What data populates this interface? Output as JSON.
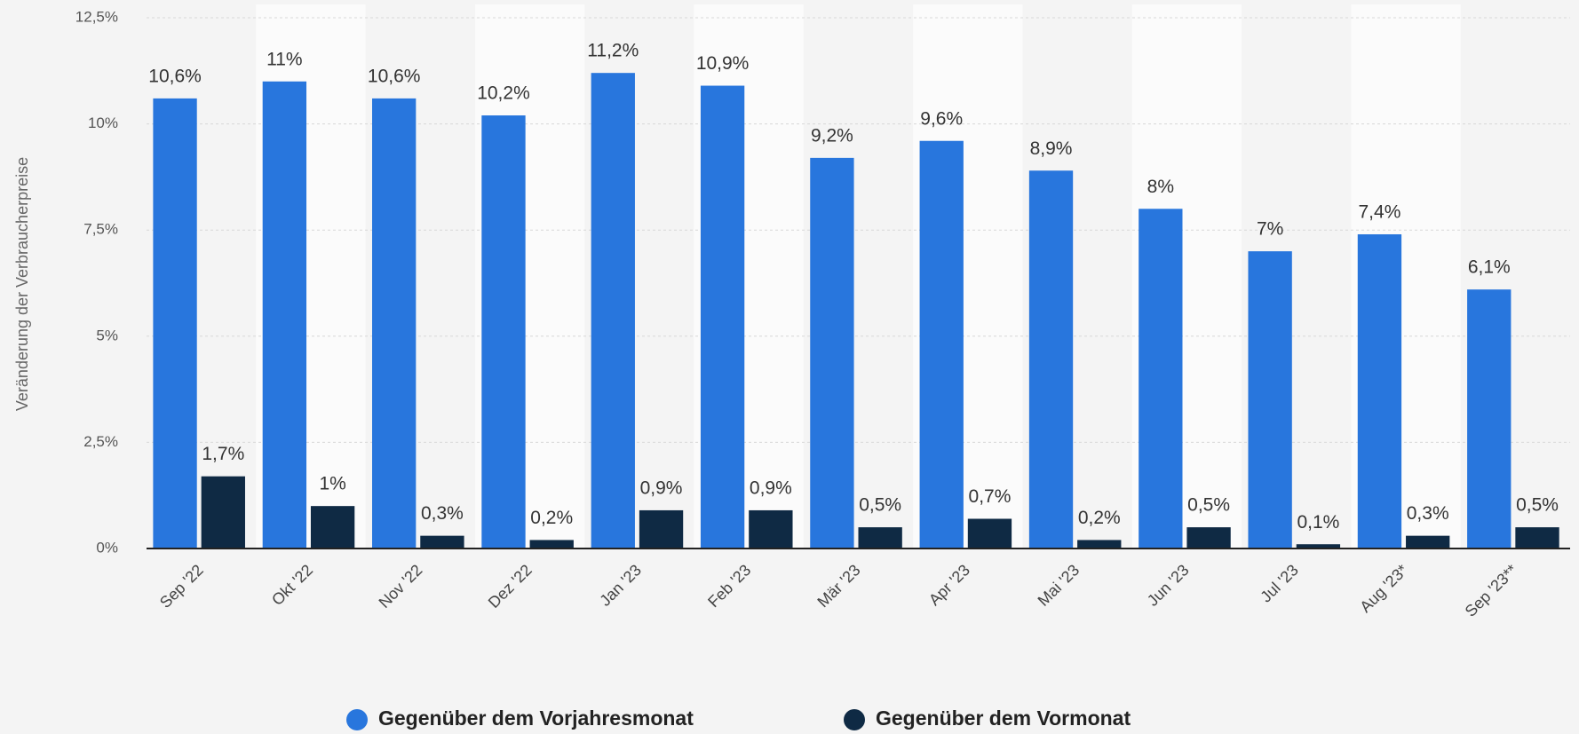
{
  "chart_data": {
    "type": "bar",
    "ylabel": "Veränderung der Verbraucherpreise",
    "categories": [
      "Sep '22",
      "Okt '22",
      "Nov '22",
      "Dez '22",
      "Jan '23",
      "Feb '23",
      "Mär '23",
      "Apr '23",
      "Mai '23",
      "Jun '23",
      "Jul '23",
      "Aug '23*",
      "Sep '23**"
    ],
    "series": [
      {
        "name": "Gegenüber dem Vorjahresmonat",
        "color": "#2876dd",
        "values": [
          10.6,
          11,
          10.6,
          10.2,
          11.2,
          10.9,
          9.2,
          9.6,
          8.9,
          8,
          7,
          7.4,
          6.1
        ],
        "value_labels": [
          "10,6%",
          "11%",
          "10,6%",
          "10,2%",
          "11,2%",
          "10,9%",
          "9,2%",
          "9,6%",
          "8,9%",
          "8%",
          "7%",
          "7,4%",
          "6,1%"
        ]
      },
      {
        "name": "Gegenüber dem Vormonat",
        "color": "#0f2a44",
        "values": [
          1.7,
          1,
          0.3,
          0.2,
          0.9,
          0.9,
          0.5,
          0.7,
          0.2,
          0.5,
          0.1,
          0.3,
          0.5
        ],
        "value_labels": [
          "1,7%",
          "1%",
          "0,3%",
          "0,2%",
          "0,9%",
          "0,9%",
          "0,5%",
          "0,7%",
          "0,2%",
          "0,5%",
          "0,1%",
          "0,3%",
          "0,5%"
        ]
      }
    ],
    "ylim": [
      0,
      12.5
    ],
    "yticks": [
      {
        "value": 0,
        "label": "0%"
      },
      {
        "value": 2.5,
        "label": "2,5%"
      },
      {
        "value": 5,
        "label": "5%"
      },
      {
        "value": 7.5,
        "label": "7,5%"
      },
      {
        "value": 10,
        "label": "10%"
      },
      {
        "value": 12.5,
        "label": "12,5%"
      }
    ],
    "grid": true,
    "legend": "bottom"
  }
}
